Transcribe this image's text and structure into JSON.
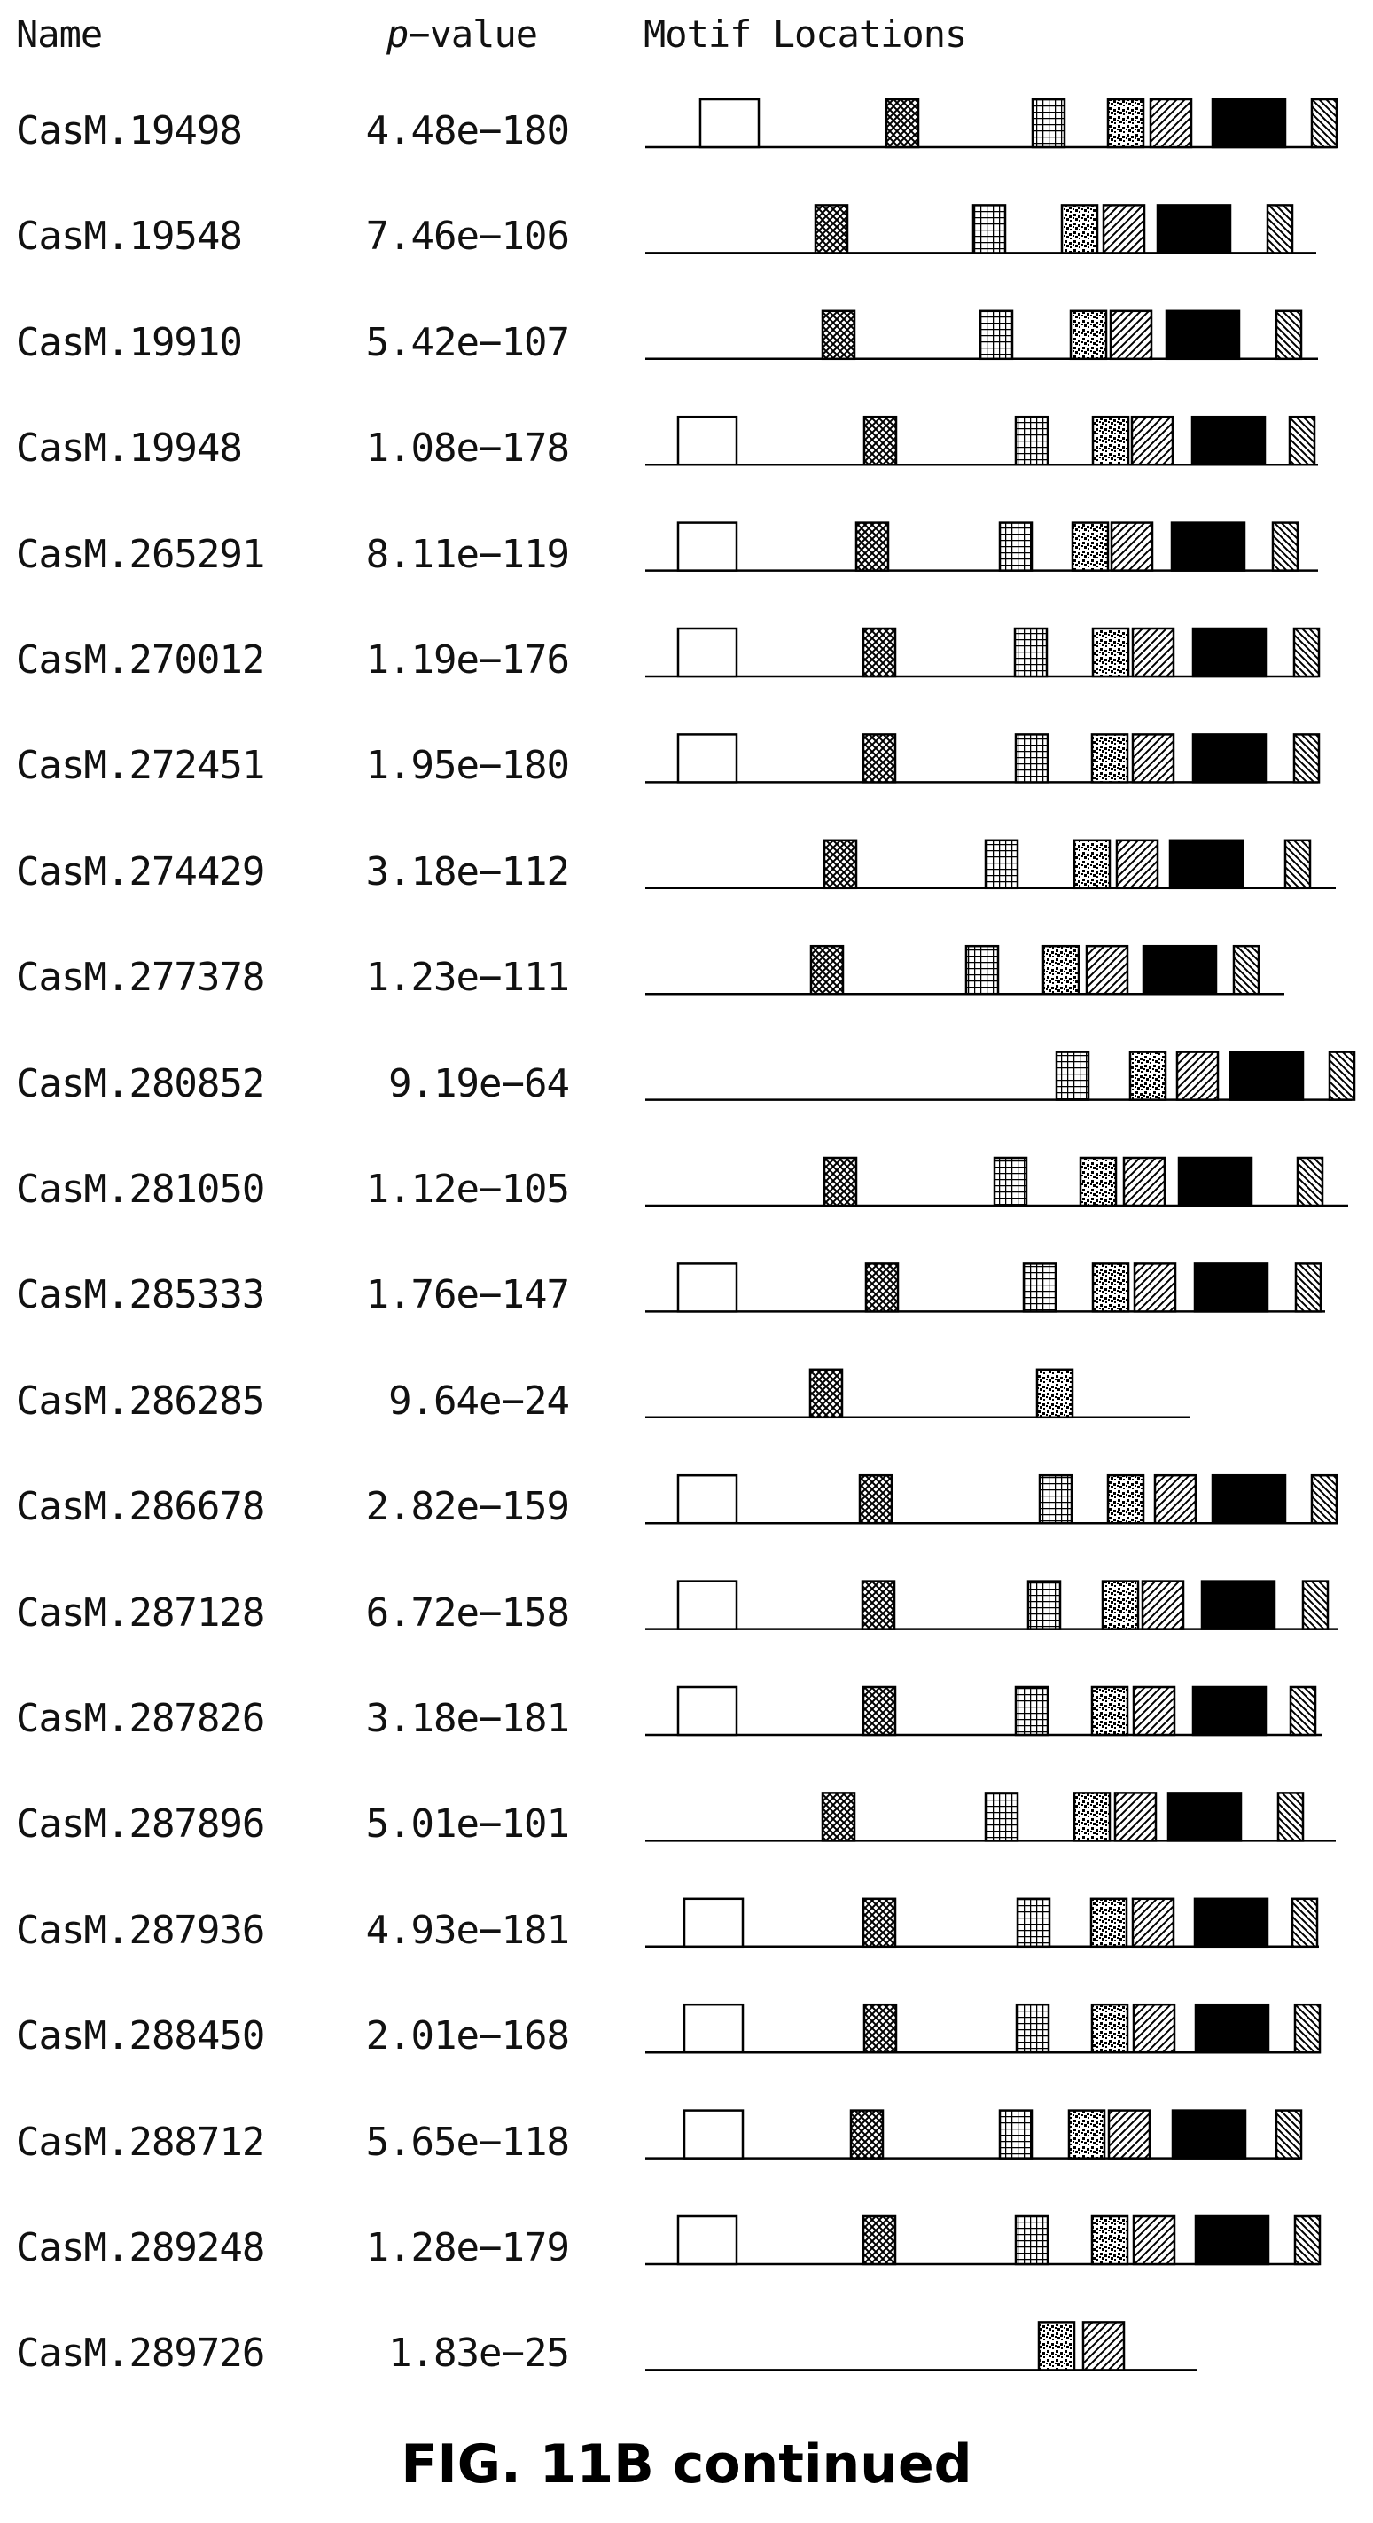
{
  "headers": {
    "name": "Name",
    "p_prefix": "p",
    "p_suffix": "−value",
    "motif": "Motif Locations"
  },
  "caption": "FIG. 11B continued",
  "motif_types": [
    {
      "id": "open",
      "pattern": "blank"
    },
    {
      "id": "cross",
      "pattern": "crosshatch"
    },
    {
      "id": "grid",
      "pattern": "grid"
    },
    {
      "id": "dots",
      "pattern": "stipple"
    },
    {
      "id": "diag",
      "pattern": "diagonal-forward"
    },
    {
      "id": "solid",
      "pattern": "solid-black"
    },
    {
      "id": "back",
      "pattern": "diagonal-back"
    }
  ],
  "rows": [
    {
      "name": "CasM.19498",
      "p": "4.48e−180",
      "motifs": [
        "open",
        "cross",
        "grid",
        "dots",
        "diag",
        "solid",
        "back"
      ]
    },
    {
      "name": "CasM.19548",
      "p": "7.46e−106",
      "motifs": [
        "cross",
        "grid",
        "dots",
        "diag",
        "solid",
        "back"
      ]
    },
    {
      "name": "CasM.19910",
      "p": "5.42e−107",
      "motifs": [
        "cross",
        "grid",
        "dots",
        "diag",
        "solid",
        "back"
      ]
    },
    {
      "name": "CasM.19948",
      "p": "1.08e−178",
      "motifs": [
        "open",
        "cross",
        "grid",
        "dots",
        "diag",
        "solid",
        "back"
      ]
    },
    {
      "name": "CasM.265291",
      "p": "8.11e−119",
      "motifs": [
        "open",
        "cross",
        "grid",
        "dots",
        "diag",
        "solid",
        "back"
      ]
    },
    {
      "name": "CasM.270012",
      "p": "1.19e−176",
      "motifs": [
        "open",
        "cross",
        "grid",
        "dots",
        "diag",
        "solid",
        "back"
      ]
    },
    {
      "name": "CasM.272451",
      "p": "1.95e−180",
      "motifs": [
        "open",
        "cross",
        "grid",
        "dots",
        "diag",
        "solid",
        "back"
      ]
    },
    {
      "name": "CasM.274429",
      "p": "3.18e−112",
      "motifs": [
        "cross",
        "grid",
        "dots",
        "diag",
        "solid",
        "back"
      ]
    },
    {
      "name": "CasM.277378",
      "p": "1.23e−111",
      "motifs": [
        "cross",
        "grid",
        "dots",
        "diag",
        "solid",
        "back"
      ]
    },
    {
      "name": "CasM.280852",
      "p": "9.19e−64",
      "motifs": [
        "grid",
        "dots",
        "diag",
        "solid",
        "back"
      ]
    },
    {
      "name": "CasM.281050",
      "p": "1.12e−105",
      "motifs": [
        "cross",
        "grid",
        "dots",
        "diag",
        "solid",
        "back"
      ]
    },
    {
      "name": "CasM.285333",
      "p": "1.76e−147",
      "motifs": [
        "open",
        "cross",
        "grid",
        "dots",
        "diag",
        "solid",
        "back"
      ]
    },
    {
      "name": "CasM.286285",
      "p": "9.64e−24",
      "motifs": [
        "cross",
        "dots"
      ]
    },
    {
      "name": "CasM.286678",
      "p": "2.82e−159",
      "motifs": [
        "open",
        "cross",
        "grid",
        "dots",
        "diag",
        "solid",
        "back"
      ]
    },
    {
      "name": "CasM.287128",
      "p": "6.72e−158",
      "motifs": [
        "open",
        "cross",
        "grid",
        "dots",
        "diag",
        "solid",
        "back"
      ]
    },
    {
      "name": "CasM.287826",
      "p": "3.18e−181",
      "motifs": [
        "open",
        "cross",
        "grid",
        "dots",
        "diag",
        "solid",
        "back"
      ]
    },
    {
      "name": "CasM.287896",
      "p": "5.01e−101",
      "motifs": [
        "cross",
        "grid",
        "dots",
        "diag",
        "solid",
        "back"
      ]
    },
    {
      "name": "CasM.287936",
      "p": "4.93e−181",
      "motifs": [
        "open",
        "cross",
        "grid",
        "dots",
        "diag",
        "solid",
        "back"
      ]
    },
    {
      "name": "CasM.288450",
      "p": "2.01e−168",
      "motifs": [
        "open",
        "cross",
        "grid",
        "dots",
        "diag",
        "solid",
        "back"
      ]
    },
    {
      "name": "CasM.288712",
      "p": "5.65e−118",
      "motifs": [
        "open",
        "cross",
        "grid",
        "dots",
        "diag",
        "solid",
        "back"
      ]
    },
    {
      "name": "CasM.289248",
      "p": "1.28e−179",
      "motifs": [
        "open",
        "cross",
        "grid",
        "dots",
        "diag",
        "solid",
        "back"
      ]
    },
    {
      "name": "CasM.289726",
      "p": "1.83e−25",
      "motifs": [
        "dots",
        "diag"
      ]
    }
  ]
}
